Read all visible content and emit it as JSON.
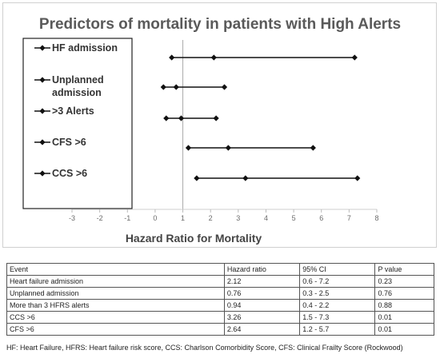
{
  "chart_data": {
    "type": "forest",
    "title": "Predictors of mortality in patients with High Alerts",
    "xlabel": "Hazard Ratio for Mortality",
    "xlim": [
      -3,
      8
    ],
    "xticks": [
      -3,
      -2,
      -1,
      0,
      1,
      2,
      3,
      4,
      5,
      6,
      7,
      8
    ],
    "reference_line": 1,
    "series": [
      {
        "name": "HF admission",
        "estimate": 2.12,
        "lower": 0.6,
        "upper": 7.2
      },
      {
        "name": "Unplanned admission",
        "estimate": 0.76,
        "lower": 0.3,
        "upper": 2.5
      },
      {
        "name": ">3 Alerts",
        "estimate": 0.94,
        "lower": 0.4,
        "upper": 2.2
      },
      {
        "name": "CFS >6",
        "estimate": 2.64,
        "lower": 1.2,
        "upper": 5.7
      },
      {
        "name": "CCS >6",
        "estimate": 3.26,
        "lower": 1.5,
        "upper": 7.3
      }
    ]
  },
  "legend": [
    {
      "lines": [
        "HF admission"
      ]
    },
    {
      "lines": [
        "Unplanned",
        "admission"
      ]
    },
    {
      "lines": [
        ">3 Alerts"
      ]
    },
    {
      "lines": [
        "CFS >6"
      ]
    },
    {
      "lines": [
        "CCS >6"
      ]
    }
  ],
  "table": {
    "headers": [
      "Event",
      "Hazard ratio",
      "95% CI",
      "P value"
    ],
    "rows": [
      [
        "Heart failure admission",
        "2.12",
        "0.6 - 7.2",
        "0.23"
      ],
      [
        "Unplanned admission",
        "0.76",
        "0.3 - 2.5",
        "0.76"
      ],
      [
        "More than 3 HFRS alerts",
        "0.94",
        "0.4 - 2.2",
        "0.88"
      ],
      [
        "CCS >6",
        "3.26",
        "1.5 - 7.3",
        "0.01"
      ],
      [
        "CFS >6",
        "2.64",
        "1.2 - 5.7",
        "0.01"
      ]
    ]
  },
  "footnote": "HF: Heart Failure, HFRS: Heart failure risk score, CCS: Charlson Comorbidity Score, CFS: Clinical Frailty Score (Rockwood)"
}
